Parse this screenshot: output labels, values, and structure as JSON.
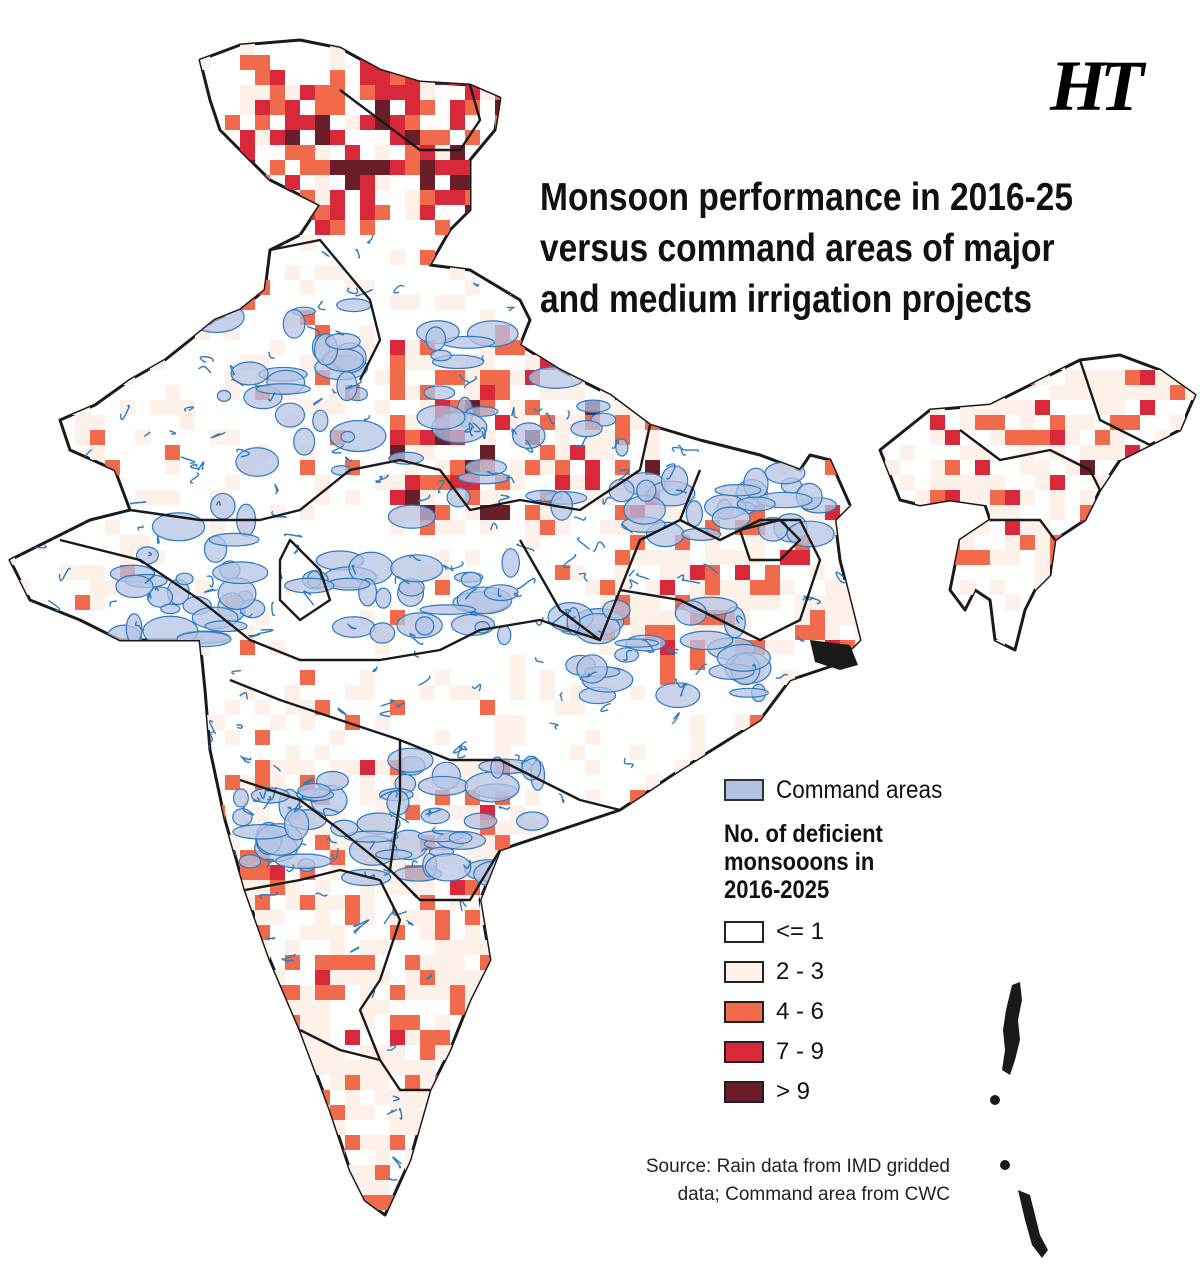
{
  "logo": {
    "text": "HT"
  },
  "title": {
    "lines": [
      "Monsoon performance in 2016-25",
      "versus command areas of major",
      "and medium irrigation projects"
    ]
  },
  "legend": {
    "command_areas": {
      "label": "Command areas",
      "color": "#b5c3e3",
      "outline": "#2b7bbf"
    },
    "deficient_title": "No. of deficient\nmonsooons in\n2016-2025",
    "classes": [
      {
        "label": "<= 1",
        "color": "#ffffff"
      },
      {
        "label": "2 - 3",
        "color": "#fdf1ea"
      },
      {
        "label": "4 - 6",
        "color": "#f26a4c"
      },
      {
        "label": "7 - 9",
        "color": "#d8283a"
      },
      {
        "label": "> 9",
        "color": "#6a1e2a"
      }
    ]
  },
  "source": "Source: Rain data from IMD gridded\ndata; Command area from CWC",
  "colors": {
    "boundary": "#1a1a1a",
    "canal": "#2b7bbf"
  }
}
